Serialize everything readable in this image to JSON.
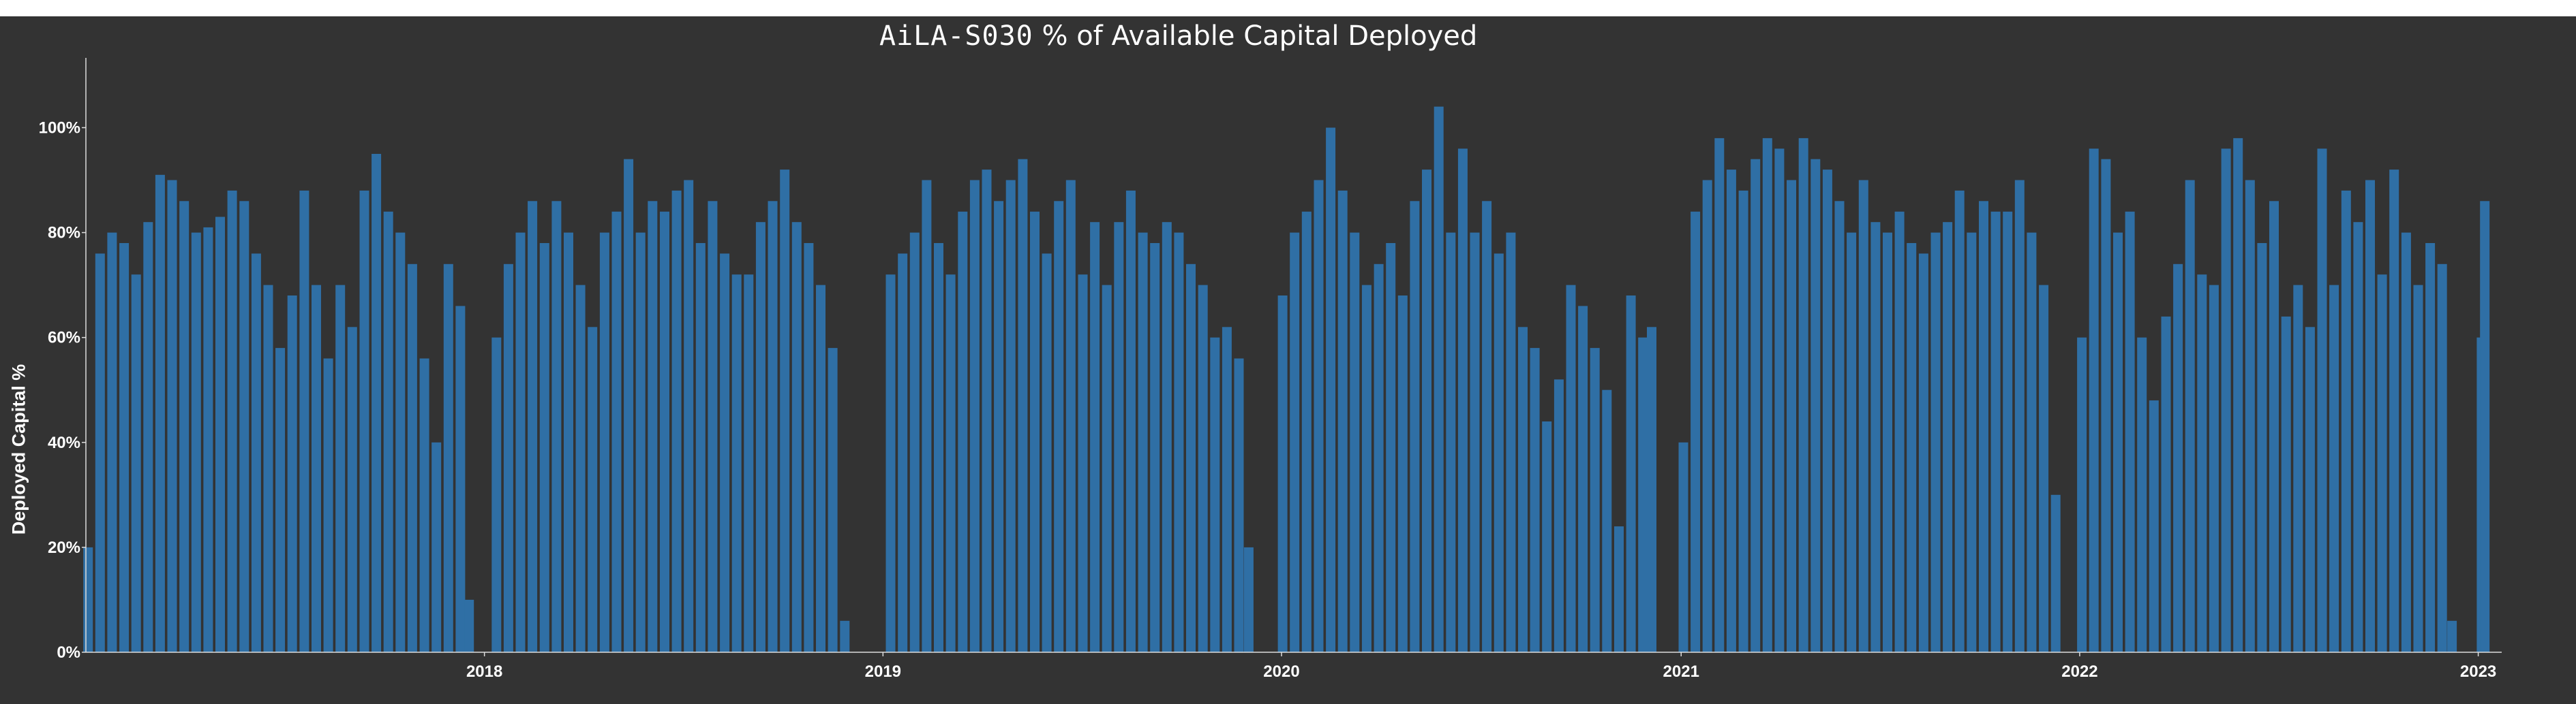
{
  "chart_data": {
    "type": "bar",
    "title": {
      "brand": "AiLA-S030",
      "text": "% of Available Capital Deployed"
    },
    "ylabel": "Deployed Capital %",
    "xlabel": "",
    "ylim": [
      0,
      112
    ],
    "x_domain": [
      "2017-01-01",
      "2023-01-10"
    ],
    "y_ticks": [
      {
        "value": 0,
        "label": "0%"
      },
      {
        "value": 20,
        "label": "20%"
      },
      {
        "value": 40,
        "label": "40%"
      },
      {
        "value": 60,
        "label": "60%"
      },
      {
        "value": 80,
        "label": "80%"
      },
      {
        "value": 100,
        "label": "100%"
      }
    ],
    "x_ticks": [
      {
        "value": "2018-01-01",
        "label": "2018"
      },
      {
        "value": "2019-01-01",
        "label": "2019"
      },
      {
        "value": "2020-01-01",
        "label": "2020"
      },
      {
        "value": "2021-01-01",
        "label": "2021"
      },
      {
        "value": "2022-01-01",
        "label": "2022"
      },
      {
        "value": "2023-01-01",
        "label": "2023"
      }
    ],
    "grid": false,
    "legend": "none",
    "bar_color": "#2f6fa5",
    "background_color": "#333333",
    "text_color": "#ffffff",
    "series": [
      {
        "points": [
          [
            "2017-01-03",
            20
          ],
          [
            "2017-01-14",
            76
          ],
          [
            "2017-01-25",
            80
          ],
          [
            "2017-02-05",
            78
          ],
          [
            "2017-02-16",
            72
          ],
          [
            "2017-02-27",
            82
          ],
          [
            "2017-03-10",
            91
          ],
          [
            "2017-03-21",
            90
          ],
          [
            "2017-04-01",
            86
          ],
          [
            "2017-04-12",
            80
          ],
          [
            "2017-04-23",
            81
          ],
          [
            "2017-05-04",
            83
          ],
          [
            "2017-05-15",
            88
          ],
          [
            "2017-05-26",
            86
          ],
          [
            "2017-06-06",
            76
          ],
          [
            "2017-06-17",
            70
          ],
          [
            "2017-06-28",
            58
          ],
          [
            "2017-07-09",
            68
          ],
          [
            "2017-07-20",
            88
          ],
          [
            "2017-07-31",
            70
          ],
          [
            "2017-08-11",
            56
          ],
          [
            "2017-08-22",
            70
          ],
          [
            "2017-09-02",
            62
          ],
          [
            "2017-09-13",
            88
          ],
          [
            "2017-09-24",
            95
          ],
          [
            "2017-10-05",
            84
          ],
          [
            "2017-10-16",
            80
          ],
          [
            "2017-10-27",
            74
          ],
          [
            "2017-11-07",
            56
          ],
          [
            "2017-11-18",
            40
          ],
          [
            "2017-11-29",
            74
          ],
          [
            "2017-12-10",
            66
          ],
          [
            "2017-12-18",
            10
          ],
          [
            "2018-01-12",
            60
          ],
          [
            "2018-01-23",
            74
          ],
          [
            "2018-02-03",
            80
          ],
          [
            "2018-02-14",
            86
          ],
          [
            "2018-02-25",
            78
          ],
          [
            "2018-03-08",
            86
          ],
          [
            "2018-03-19",
            80
          ],
          [
            "2018-03-30",
            70
          ],
          [
            "2018-04-10",
            62
          ],
          [
            "2018-04-21",
            80
          ],
          [
            "2018-05-02",
            84
          ],
          [
            "2018-05-13",
            94
          ],
          [
            "2018-05-24",
            80
          ],
          [
            "2018-06-04",
            86
          ],
          [
            "2018-06-15",
            84
          ],
          [
            "2018-06-26",
            88
          ],
          [
            "2018-07-07",
            90
          ],
          [
            "2018-07-18",
            78
          ],
          [
            "2018-07-29",
            86
          ],
          [
            "2018-08-09",
            76
          ],
          [
            "2018-08-20",
            72
          ],
          [
            "2018-08-31",
            72
          ],
          [
            "2018-09-11",
            82
          ],
          [
            "2018-09-22",
            86
          ],
          [
            "2018-10-03",
            92
          ],
          [
            "2018-10-14",
            82
          ],
          [
            "2018-10-25",
            78
          ],
          [
            "2018-11-05",
            70
          ],
          [
            "2018-11-16",
            58
          ],
          [
            "2018-11-27",
            6
          ],
          [
            "2019-01-08",
            72
          ],
          [
            "2019-01-19",
            76
          ],
          [
            "2019-01-30",
            80
          ],
          [
            "2019-02-10",
            90
          ],
          [
            "2019-02-21",
            78
          ],
          [
            "2019-03-04",
            72
          ],
          [
            "2019-03-15",
            84
          ],
          [
            "2019-03-26",
            90
          ],
          [
            "2019-04-06",
            92
          ],
          [
            "2019-04-17",
            86
          ],
          [
            "2019-04-28",
            90
          ],
          [
            "2019-05-09",
            94
          ],
          [
            "2019-05-20",
            84
          ],
          [
            "2019-05-31",
            76
          ],
          [
            "2019-06-11",
            86
          ],
          [
            "2019-06-22",
            90
          ],
          [
            "2019-07-03",
            72
          ],
          [
            "2019-07-14",
            82
          ],
          [
            "2019-07-25",
            70
          ],
          [
            "2019-08-05",
            82
          ],
          [
            "2019-08-16",
            88
          ],
          [
            "2019-08-27",
            80
          ],
          [
            "2019-09-07",
            78
          ],
          [
            "2019-09-18",
            82
          ],
          [
            "2019-09-29",
            80
          ],
          [
            "2019-10-10",
            74
          ],
          [
            "2019-10-21",
            70
          ],
          [
            "2019-11-01",
            60
          ],
          [
            "2019-11-12",
            62
          ],
          [
            "2019-11-23",
            56
          ],
          [
            "2019-12-02",
            20
          ],
          [
            "2020-01-02",
            68
          ],
          [
            "2020-01-13",
            80
          ],
          [
            "2020-01-24",
            84
          ],
          [
            "2020-02-04",
            90
          ],
          [
            "2020-02-15",
            100
          ],
          [
            "2020-02-26",
            88
          ],
          [
            "2020-03-08",
            80
          ],
          [
            "2020-03-19",
            70
          ],
          [
            "2020-03-30",
            74
          ],
          [
            "2020-04-10",
            78
          ],
          [
            "2020-04-21",
            68
          ],
          [
            "2020-05-02",
            86
          ],
          [
            "2020-05-13",
            92
          ],
          [
            "2020-05-24",
            104
          ],
          [
            "2020-06-04",
            80
          ],
          [
            "2020-06-15",
            96
          ],
          [
            "2020-06-26",
            80
          ],
          [
            "2020-07-07",
            86
          ],
          [
            "2020-07-18",
            76
          ],
          [
            "2020-07-29",
            80
          ],
          [
            "2020-08-09",
            62
          ],
          [
            "2020-08-20",
            58
          ],
          [
            "2020-08-31",
            44
          ],
          [
            "2020-09-11",
            52
          ],
          [
            "2020-09-22",
            70
          ],
          [
            "2020-10-03",
            66
          ],
          [
            "2020-10-14",
            58
          ],
          [
            "2020-10-25",
            50
          ],
          [
            "2020-11-05",
            24
          ],
          [
            "2020-11-16",
            68
          ],
          [
            "2020-11-27",
            60
          ],
          [
            "2020-12-05",
            62
          ],
          [
            "2021-01-03",
            40
          ],
          [
            "2021-01-14",
            84
          ],
          [
            "2021-01-25",
            90
          ],
          [
            "2021-02-05",
            98
          ],
          [
            "2021-02-16",
            92
          ],
          [
            "2021-02-27",
            88
          ],
          [
            "2021-03-10",
            94
          ],
          [
            "2021-03-21",
            98
          ],
          [
            "2021-04-01",
            96
          ],
          [
            "2021-04-12",
            90
          ],
          [
            "2021-04-23",
            98
          ],
          [
            "2021-05-04",
            94
          ],
          [
            "2021-05-15",
            92
          ],
          [
            "2021-05-26",
            86
          ],
          [
            "2021-06-06",
            80
          ],
          [
            "2021-06-17",
            90
          ],
          [
            "2021-06-28",
            82
          ],
          [
            "2021-07-09",
            80
          ],
          [
            "2021-07-20",
            84
          ],
          [
            "2021-07-31",
            78
          ],
          [
            "2021-08-11",
            76
          ],
          [
            "2021-08-22",
            80
          ],
          [
            "2021-09-02",
            82
          ],
          [
            "2021-09-13",
            88
          ],
          [
            "2021-09-24",
            80
          ],
          [
            "2021-10-05",
            86
          ],
          [
            "2021-10-16",
            84
          ],
          [
            "2021-10-27",
            84
          ],
          [
            "2021-11-07",
            90
          ],
          [
            "2021-11-18",
            80
          ],
          [
            "2021-11-29",
            70
          ],
          [
            "2021-12-10",
            30
          ],
          [
            "2022-01-03",
            60
          ],
          [
            "2022-01-14",
            96
          ],
          [
            "2022-01-25",
            94
          ],
          [
            "2022-02-05",
            80
          ],
          [
            "2022-02-16",
            84
          ],
          [
            "2022-02-27",
            60
          ],
          [
            "2022-03-10",
            48
          ],
          [
            "2022-03-21",
            64
          ],
          [
            "2022-04-01",
            74
          ],
          [
            "2022-04-12",
            90
          ],
          [
            "2022-04-23",
            72
          ],
          [
            "2022-05-04",
            70
          ],
          [
            "2022-05-15",
            96
          ],
          [
            "2022-05-26",
            98
          ],
          [
            "2022-06-06",
            90
          ],
          [
            "2022-06-17",
            78
          ],
          [
            "2022-06-28",
            86
          ],
          [
            "2022-07-09",
            64
          ],
          [
            "2022-07-20",
            70
          ],
          [
            "2022-07-31",
            62
          ],
          [
            "2022-08-11",
            96
          ],
          [
            "2022-08-22",
            70
          ],
          [
            "2022-09-02",
            88
          ],
          [
            "2022-09-13",
            82
          ],
          [
            "2022-09-24",
            90
          ],
          [
            "2022-10-05",
            72
          ],
          [
            "2022-10-16",
            92
          ],
          [
            "2022-10-27",
            80
          ],
          [
            "2022-11-07",
            70
          ],
          [
            "2022-11-18",
            78
          ],
          [
            "2022-11-29",
            74
          ],
          [
            "2022-12-08",
            6
          ],
          [
            "2023-01-04",
            60
          ],
          [
            "2023-01-07",
            86
          ]
        ]
      }
    ]
  }
}
